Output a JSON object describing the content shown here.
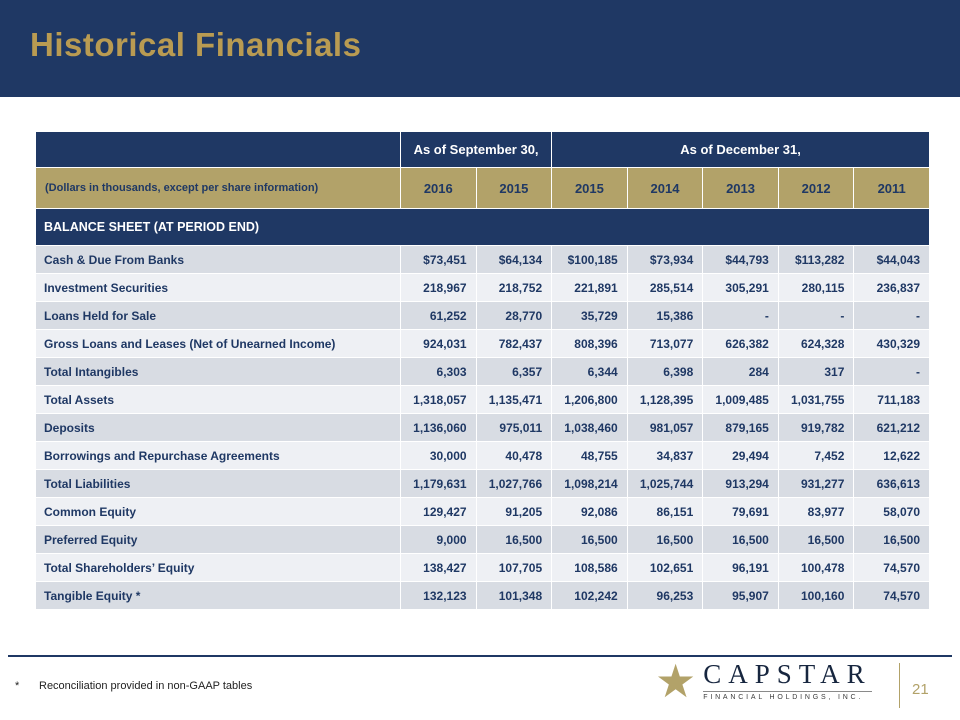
{
  "slide": {
    "title": "Historical Financials",
    "page_number": "21"
  },
  "footer": {
    "footnote_marker": "*",
    "footnote_text": "Reconciliation provided in non-GAAP tables",
    "logo_name": "CAPSTAR",
    "logo_subtitle": "FINANCIAL HOLDINGS, INC."
  },
  "icons": {
    "logo_star": "★"
  },
  "colors": {
    "navy": "#1F3864",
    "gold": "#B2A269",
    "title_gold": "#B99B52",
    "row_dark": "#D8DCE3",
    "row_light": "#EEF0F4"
  },
  "table": {
    "group_headers": {
      "september": "As of September 30,",
      "december": "As of December 31,"
    },
    "units_label": "(Dollars in thousands, except per share information)",
    "years": [
      "2016",
      "2015",
      "2015",
      "2014",
      "2013",
      "2012",
      "2011"
    ],
    "section_header": "BALANCE SHEET (AT PERIOD END)",
    "rows": [
      {
        "label": "Cash & Due From Banks",
        "values": [
          "$73,451",
          "$64,134",
          "$100,185",
          "$73,934",
          "$44,793",
          "$113,282",
          "$44,043"
        ]
      },
      {
        "label": "Investment Securities",
        "values": [
          "218,967",
          "218,752",
          "221,891",
          "285,514",
          "305,291",
          "280,115",
          "236,837"
        ]
      },
      {
        "label": "Loans Held for Sale",
        "values": [
          "61,252",
          "28,770",
          "35,729",
          "15,386",
          "-",
          "-",
          "-"
        ]
      },
      {
        "label": "Gross Loans and Leases (Net of Unearned Income)",
        "values": [
          "924,031",
          "782,437",
          "808,396",
          "713,077",
          "626,382",
          "624,328",
          "430,329"
        ]
      },
      {
        "label": "Total Intangibles",
        "values": [
          "6,303",
          "6,357",
          "6,344",
          "6,398",
          "284",
          "317",
          "-"
        ]
      },
      {
        "label": "Total Assets",
        "values": [
          "1,318,057",
          "1,135,471",
          "1,206,800",
          "1,128,395",
          "1,009,485",
          "1,031,755",
          "711,183"
        ]
      },
      {
        "label": "Deposits",
        "values": [
          "1,136,060",
          "975,011",
          "1,038,460",
          "981,057",
          "879,165",
          "919,782",
          "621,212"
        ]
      },
      {
        "label": "Borrowings and Repurchase Agreements",
        "values": [
          "30,000",
          "40,478",
          "48,755",
          "34,837",
          "29,494",
          "7,452",
          "12,622"
        ]
      },
      {
        "label": "Total Liabilities",
        "values": [
          "1,179,631",
          "1,027,766",
          "1,098,214",
          "1,025,744",
          "913,294",
          "931,277",
          "636,613"
        ]
      },
      {
        "label": "Common Equity",
        "values": [
          "129,427",
          "91,205",
          "92,086",
          "86,151",
          "79,691",
          "83,977",
          "58,070"
        ]
      },
      {
        "label": "Preferred Equity",
        "values": [
          "9,000",
          "16,500",
          "16,500",
          "16,500",
          "16,500",
          "16,500",
          "16,500"
        ]
      },
      {
        "label": "Total Shareholders’ Equity",
        "values": [
          "138,427",
          "107,705",
          "108,586",
          "102,651",
          "96,191",
          "100,478",
          "74,570"
        ]
      },
      {
        "label": "Tangible Equity *",
        "values": [
          "132,123",
          "101,348",
          "102,242",
          "96,253",
          "95,907",
          "100,160",
          "74,570"
        ]
      }
    ]
  }
}
